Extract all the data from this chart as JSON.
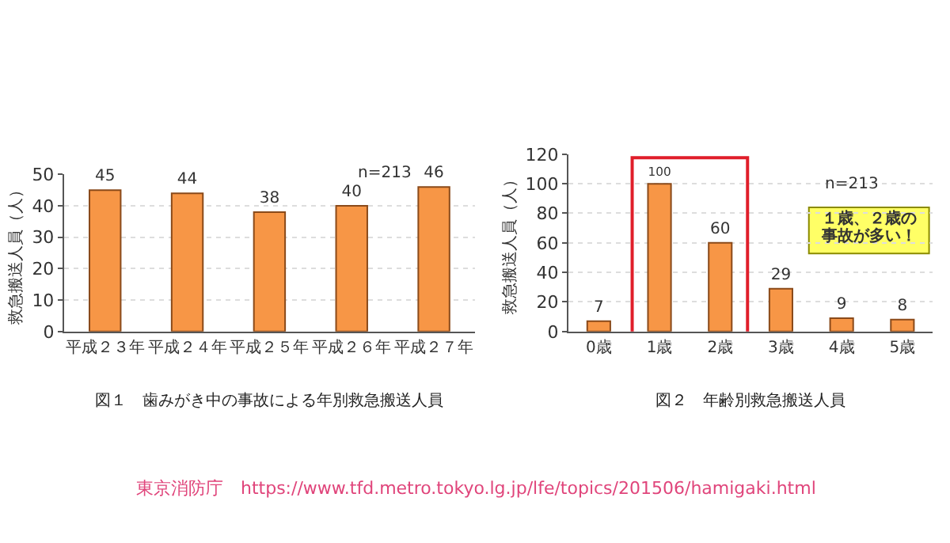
{
  "chart_data": [
    {
      "type": "bar",
      "categories": [
        "平成２３年",
        "平成２４年",
        "平成２５年",
        "平成２６年",
        "平成２７年"
      ],
      "values": [
        45,
        44,
        38,
        40,
        46
      ],
      "color": "#f79646",
      "ylim": [
        0,
        50
      ],
      "yticks": [
        0,
        10,
        20,
        30,
        40,
        50
      ],
      "grid": "y",
      "data_labels": true,
      "ylabel": "救急搬送人員（人）",
      "annotations": [
        "n=213",
        "図１　歯みがき中の事故による年別救急搬送人員"
      ]
    },
    {
      "type": "bar",
      "categories": [
        "0歳",
        "1歳",
        "2歳",
        "3歳",
        "4歳",
        "5歳"
      ],
      "values": [
        7,
        100,
        60,
        29,
        9,
        8
      ],
      "color": "#f79646",
      "ylim": [
        0,
        120
      ],
      "yticks": [
        0,
        20,
        40,
        60,
        80,
        100,
        120
      ],
      "grid": "y",
      "data_labels": true,
      "ylabel": "救急搬送人員（人）",
      "annotations": [
        "n=213",
        "１歳、２歳の",
        "事故が多い！",
        "図２　年齢別救急搬送人員",
        "東京消防庁　https://www.tfd.metro.tokyo.lg.jp/lfe/topics/201506/hamigaki.html"
      ]
    }
  ]
}
